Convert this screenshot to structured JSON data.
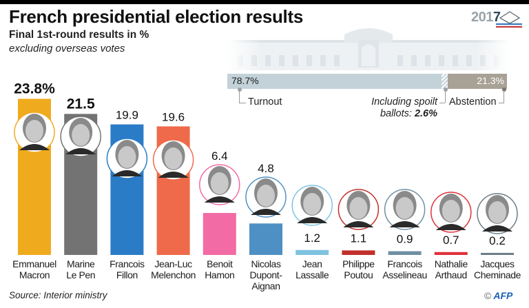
{
  "header": {
    "title": "French presidential election results",
    "subtitle": "Final 1st-round results in %",
    "note": "excluding overseas votes",
    "logo_year_prefix": "201",
    "logo_year_suffix": "7"
  },
  "turnout": {
    "turnout_pct": 78.7,
    "abstention_pct": 21.3,
    "spoilt_pct": 2.6,
    "turnout_label": "78.7%",
    "abstention_label": "21.3%",
    "turnout_caption": "Turnout",
    "abstention_caption": "Abstention",
    "spoilt_caption_line1": "Including spoilt",
    "spoilt_caption_line2_prefix": "ballots: ",
    "spoilt_caption_value": "2.6%",
    "colors": {
      "turnout": "#c3d2d9",
      "abstention": "#a8a196"
    }
  },
  "chart_data": {
    "type": "bar",
    "title": "French presidential election results",
    "subtitle": "Final 1st-round results in %",
    "xlabel": "",
    "ylabel": "%",
    "ylim": [
      0,
      25
    ],
    "grid": false,
    "categories": [
      "Emmanuel Macron",
      "Marine Le Pen",
      "Francois Fillon",
      "Jean-Luc Melenchon",
      "Benoit Hamon",
      "Nicolas Dupont-Aignan",
      "Jean Lassalle",
      "Philippe Poutou",
      "Francois Asselineau",
      "Nathalie Arthaud",
      "Jacques Cheminade"
    ],
    "values": [
      23.8,
      21.5,
      19.9,
      19.6,
      6.4,
      4.8,
      1.2,
      1.1,
      0.9,
      0.7,
      0.2
    ],
    "value_labels": [
      "23.8%",
      "21.5",
      "19.9",
      "19.6",
      "6.4",
      "4.8",
      "1.2",
      "1.1",
      "0.9",
      "0.7",
      "0.2"
    ],
    "colors": [
      "#f0aa1e",
      "#737373",
      "#2a7cc7",
      "#ef6a4a",
      "#f26ba5",
      "#4f90c4",
      "#7ec3e0",
      "#c0302b",
      "#6f8fa3",
      "#e0303b",
      "#6b7c86"
    ],
    "label_lines": [
      [
        "Emmanuel",
        "Macron"
      ],
      [
        "Marine",
        "Le Pen"
      ],
      [
        "Francois",
        "Fillon"
      ],
      [
        "Jean-Luc",
        "Melenchon"
      ],
      [
        "Benoit",
        "Hamon"
      ],
      [
        "Nicolas",
        "Dupont-",
        "Aignan"
      ],
      [
        "Jean",
        "Lassalle"
      ],
      [
        "Philippe",
        "Poutou"
      ],
      [
        "Francois",
        "Asselineau"
      ],
      [
        "Nathalie",
        "Arthaud"
      ],
      [
        "Jacques",
        "Cheminade"
      ]
    ]
  },
  "footer": {
    "source": "Source: Interior ministry",
    "copyright_symbol": "©",
    "credit": "AFP"
  }
}
